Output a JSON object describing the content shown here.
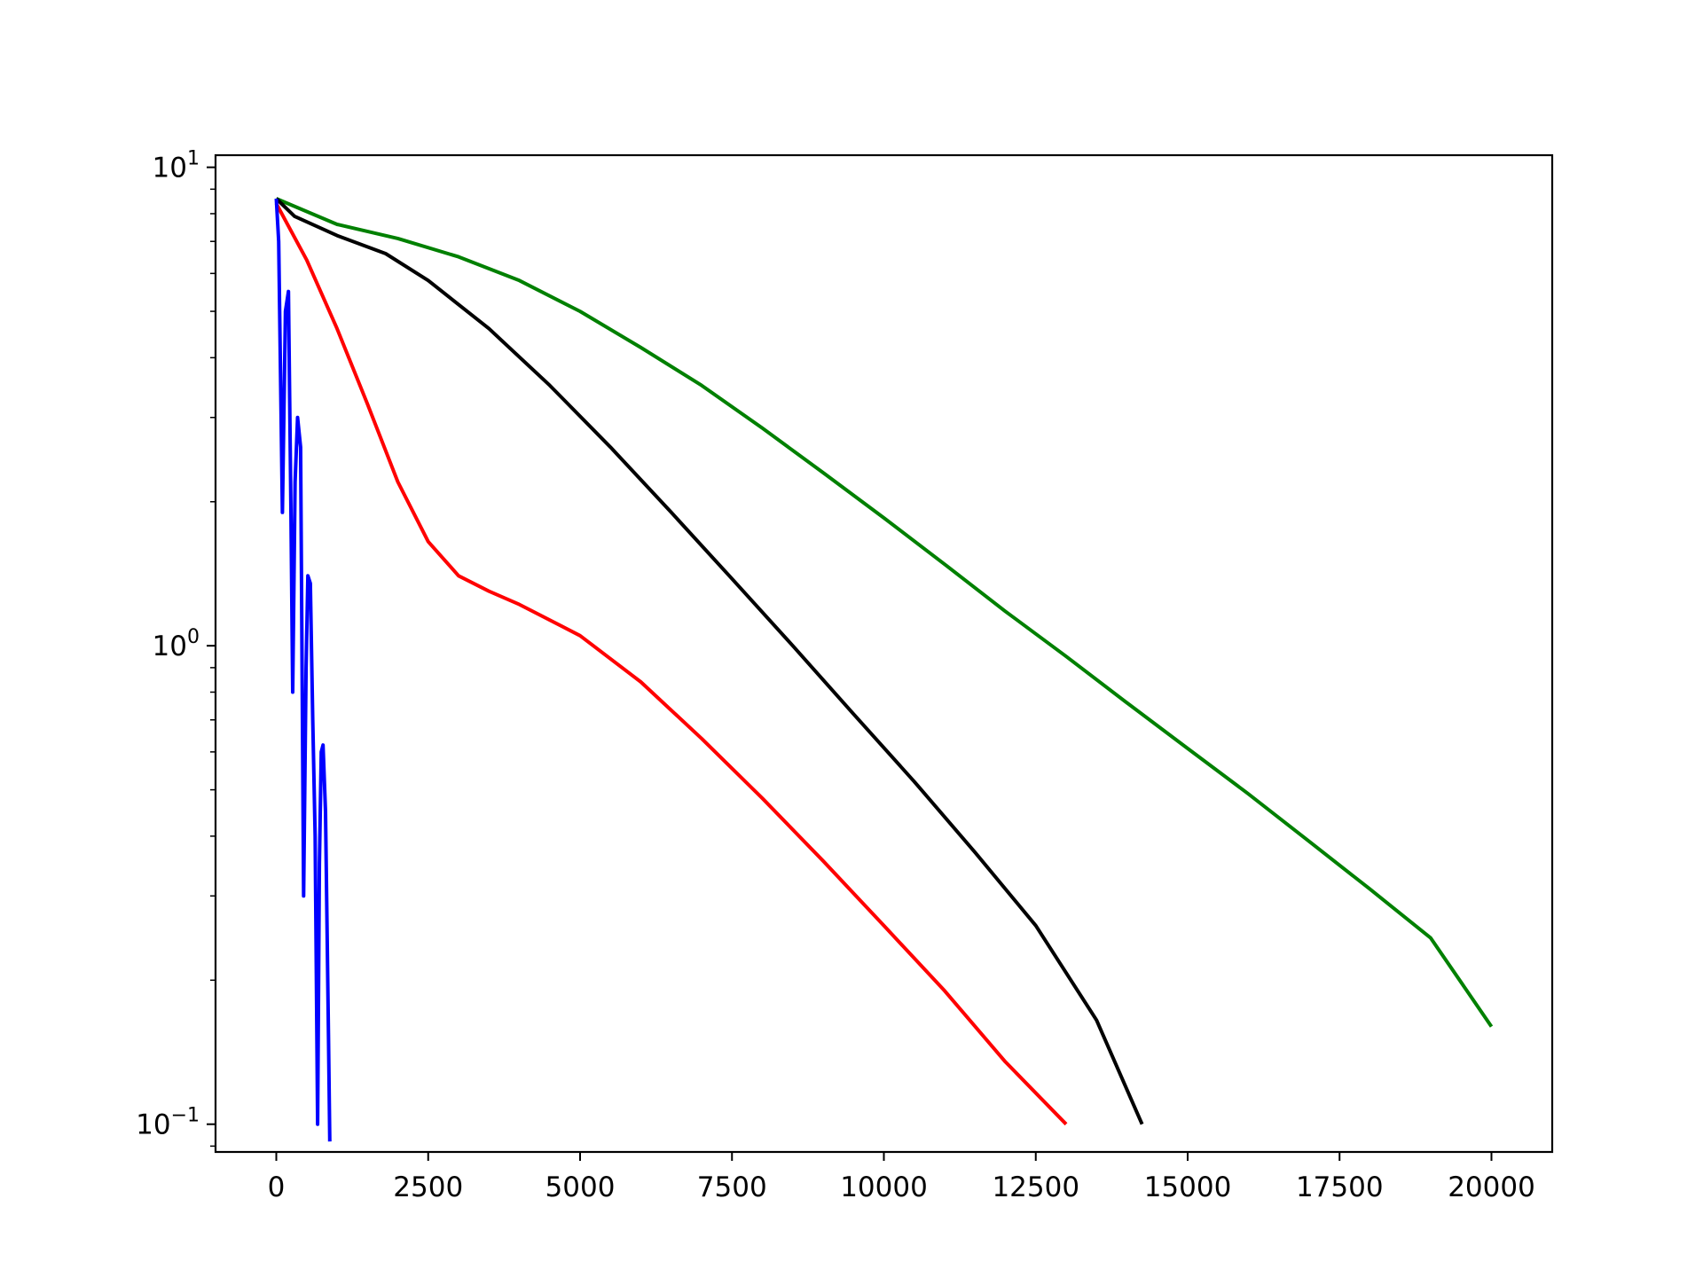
{
  "chart_data": {
    "type": "line",
    "title": "",
    "xlabel": "",
    "ylabel": "",
    "xlim": [
      -1000,
      21000
    ],
    "ylim": [
      0.0875,
      10.6
    ],
    "yscale": "log",
    "grid": false,
    "legend": "none",
    "x_ticks": [
      {
        "value": 0,
        "label": "0"
      },
      {
        "value": 2500,
        "label": "2500"
      },
      {
        "value": 5000,
        "label": "5000"
      },
      {
        "value": 7500,
        "label": "7500"
      },
      {
        "value": 10000,
        "label": "10000"
      },
      {
        "value": 12500,
        "label": "12500"
      },
      {
        "value": 15000,
        "label": "15000"
      },
      {
        "value": 17500,
        "label": "17500"
      },
      {
        "value": 20000,
        "label": "20000"
      }
    ],
    "y_major_ticks": [
      {
        "value": 0.1,
        "base": "10",
        "exp": "−1"
      },
      {
        "value": 1,
        "base": "10",
        "exp": "0"
      },
      {
        "value": 10,
        "base": "10",
        "exp": "1"
      }
    ],
    "y_minor_ticks": [
      0.09,
      0.2,
      0.3,
      0.4,
      0.5,
      0.6,
      0.7,
      0.8,
      0.9,
      2,
      3,
      4,
      5,
      6,
      7,
      8,
      9
    ],
    "series": [
      {
        "color": "#008000",
        "x": [
          0,
          1000,
          2000,
          3000,
          4000,
          5000,
          6000,
          7000,
          8000,
          9000,
          10000,
          11000,
          12000,
          13000,
          14000,
          15000,
          16000,
          17000,
          18000,
          19000,
          20000
        ],
        "y": [
          8.6,
          7.6,
          7.1,
          6.5,
          5.8,
          5.0,
          4.2,
          3.5,
          2.85,
          2.3,
          1.85,
          1.48,
          1.18,
          0.95,
          0.76,
          0.61,
          0.49,
          0.39,
          0.31,
          0.245,
          0.16
        ]
      },
      {
        "color": "#000000",
        "x": [
          0,
          300,
          1000,
          1800,
          2500,
          3500,
          4500,
          5500,
          6500,
          7500,
          8500,
          9500,
          10500,
          11500,
          12500,
          13500,
          14250
        ],
        "y": [
          8.6,
          7.9,
          7.2,
          6.6,
          5.8,
          4.6,
          3.5,
          2.6,
          1.9,
          1.38,
          1.0,
          0.72,
          0.52,
          0.37,
          0.26,
          0.165,
          0.1
        ]
      },
      {
        "color": "#ff0000",
        "x": [
          0,
          500,
          1000,
          1500,
          2000,
          2500,
          3000,
          3500,
          4000,
          5000,
          6000,
          7000,
          8000,
          9000,
          10000,
          11000,
          12000,
          13000
        ],
        "y": [
          8.4,
          6.4,
          4.6,
          3.2,
          2.2,
          1.65,
          1.4,
          1.3,
          1.22,
          1.05,
          0.84,
          0.64,
          0.48,
          0.355,
          0.26,
          0.19,
          0.135,
          0.1
        ]
      },
      {
        "color": "#0000ff",
        "x": [
          0,
          40,
          100,
          150,
          200,
          240,
          270,
          310,
          350,
          400,
          450,
          490,
          520,
          560,
          600,
          640,
          680,
          710,
          740,
          770,
          810,
          860,
          880
        ],
        "y": [
          8.6,
          7.0,
          1.9,
          5.0,
          5.5,
          2.0,
          0.8,
          2.2,
          3.0,
          2.6,
          0.3,
          0.9,
          1.4,
          1.35,
          0.7,
          0.4,
          0.1,
          0.35,
          0.6,
          0.62,
          0.45,
          0.15,
          0.092
        ]
      }
    ]
  }
}
